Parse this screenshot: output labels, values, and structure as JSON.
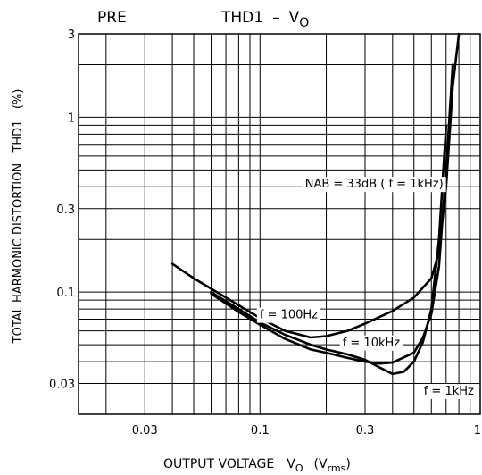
{
  "chart_data": {
    "type": "line",
    "header_left": "PRE",
    "title": "THD1",
    "title_sep": "–",
    "title_var": "V",
    "title_sub": "O",
    "ylabel": "TOTAL HARMONIC DISTORTION   THD1   (%)",
    "xlabel_main": "OUTPUT VOLTAGE",
    "xlabel_var": "V",
    "xlabel_var_sub": "O",
    "xlabel_unit_open": "(V",
    "xlabel_unit_sub": "rms",
    "xlabel_unit_close": ")",
    "x_scale": "log",
    "y_scale": "log",
    "xlim": [
      0.015,
      1
    ],
    "ylim": [
      0.02,
      3
    ],
    "x_ticks": [
      {
        "value": 0.03,
        "label": "0.03"
      },
      {
        "value": 0.1,
        "label": "0.1"
      },
      {
        "value": 0.3,
        "label": "0.3"
      },
      {
        "value": 1,
        "label": "1"
      }
    ],
    "y_ticks": [
      {
        "value": 0.03,
        "label": "0.03"
      },
      {
        "value": 0.1,
        "label": "0.1"
      },
      {
        "value": 0.3,
        "label": "0.3"
      },
      {
        "value": 1,
        "label": "1"
      },
      {
        "value": 3,
        "label": "3"
      }
    ],
    "grid": true,
    "annotations": [
      {
        "text": "NAB = 33dB ( f = 1kHz)",
        "x": 0.33,
        "y": 0.42
      },
      {
        "text": "f = 100Hz",
        "x": 0.135,
        "y": 0.075
      },
      {
        "text": "f = 10kHz",
        "x": 0.32,
        "y": 0.052
      },
      {
        "text": "f = 1kHz",
        "x": 0.72,
        "y": 0.0275
      }
    ],
    "series": [
      {
        "name": "f = 100Hz",
        "x": [
          0.04,
          0.05,
          0.07,
          0.1,
          0.13,
          0.17,
          0.2,
          0.25,
          0.3,
          0.4,
          0.5,
          0.6,
          0.65,
          0.7,
          0.75,
          0.8
        ],
        "y": [
          0.145,
          0.12,
          0.093,
          0.071,
          0.06,
          0.055,
          0.056,
          0.06,
          0.066,
          0.078,
          0.093,
          0.12,
          0.17,
          0.4,
          1.5,
          3.0
        ]
      },
      {
        "name": "f = 10kHz",
        "x": [
          0.06,
          0.08,
          0.1,
          0.13,
          0.17,
          0.2,
          0.25,
          0.3,
          0.35,
          0.4,
          0.5,
          0.55,
          0.6,
          0.65,
          0.7,
          0.75
        ],
        "y": [
          0.098,
          0.077,
          0.065,
          0.054,
          0.047,
          0.045,
          0.042,
          0.04,
          0.039,
          0.0395,
          0.045,
          0.055,
          0.075,
          0.14,
          0.5,
          2.0
        ]
      },
      {
        "name": "f = 1kHz",
        "x": [
          0.06,
          0.08,
          0.1,
          0.13,
          0.17,
          0.2,
          0.25,
          0.3,
          0.35,
          0.4,
          0.45,
          0.5,
          0.55,
          0.6,
          0.65,
          0.7
        ],
        "y": [
          0.1,
          0.08,
          0.067,
          0.057,
          0.05,
          0.047,
          0.044,
          0.041,
          0.037,
          0.034,
          0.035,
          0.04,
          0.052,
          0.08,
          0.2,
          0.9
        ]
      }
    ]
  }
}
